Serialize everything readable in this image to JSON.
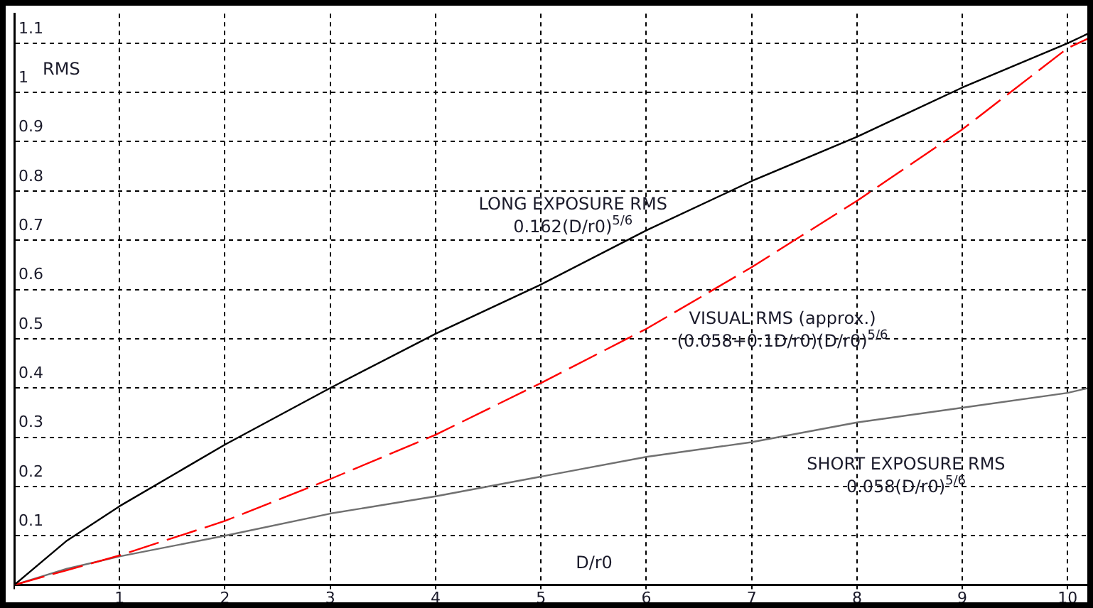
{
  "chart_data": {
    "type": "line",
    "xlabel": "D/r0",
    "ylabel": "RMS",
    "x": [
      0,
      0.5,
      1,
      2,
      3,
      4,
      5,
      6,
      7,
      8,
      9,
      10,
      10.2
    ],
    "series": [
      {
        "color": "#000000",
        "line_style": "solid",
        "values": [
          0,
          0.09,
          0.16,
          0.285,
          0.4,
          0.51,
          0.61,
          0.72,
          0.82,
          0.91,
          1.01,
          1.1,
          1.12
        ]
      },
      {
        "color": "#ff0000",
        "line_style": "dashed",
        "values": [
          0,
          0.03,
          0.06,
          0.13,
          0.215,
          0.305,
          0.41,
          0.52,
          0.645,
          0.78,
          0.925,
          1.09,
          1.11
        ]
      },
      {
        "color": "#707070",
        "line_style": "solid",
        "values": [
          0,
          0.033,
          0.058,
          0.1,
          0.145,
          0.18,
          0.22,
          0.26,
          0.29,
          0.33,
          0.36,
          0.39,
          0.4
        ]
      }
    ],
    "xlim": [
      0,
      10.2
    ],
    "ylim": [
      0,
      1.16
    ],
    "xticks": [
      {
        "value": 0,
        "label": null
      },
      1,
      2,
      3,
      4,
      5,
      6,
      7,
      8,
      9,
      10
    ],
    "yticks": [
      {
        "value": 0,
        "label": null
      },
      0.1,
      0.2,
      0.3,
      0.4,
      0.5,
      0.6,
      0.7,
      0.8,
      0.9,
      1,
      1.1
    ],
    "grid": true,
    "legend": false,
    "marker": "none",
    "annotations": [
      "LONG EXPOSURE RMS",
      "0.162(D/r0)$^{5/6}$",
      "VISUAL RMS (approx.)",
      "(0.058+0.1D/r0)(D/r0)$^{5/6}$",
      "SHORT EXPOSURE RMS",
      "0.058(D/r0)$^{5/6}$"
    ]
  }
}
